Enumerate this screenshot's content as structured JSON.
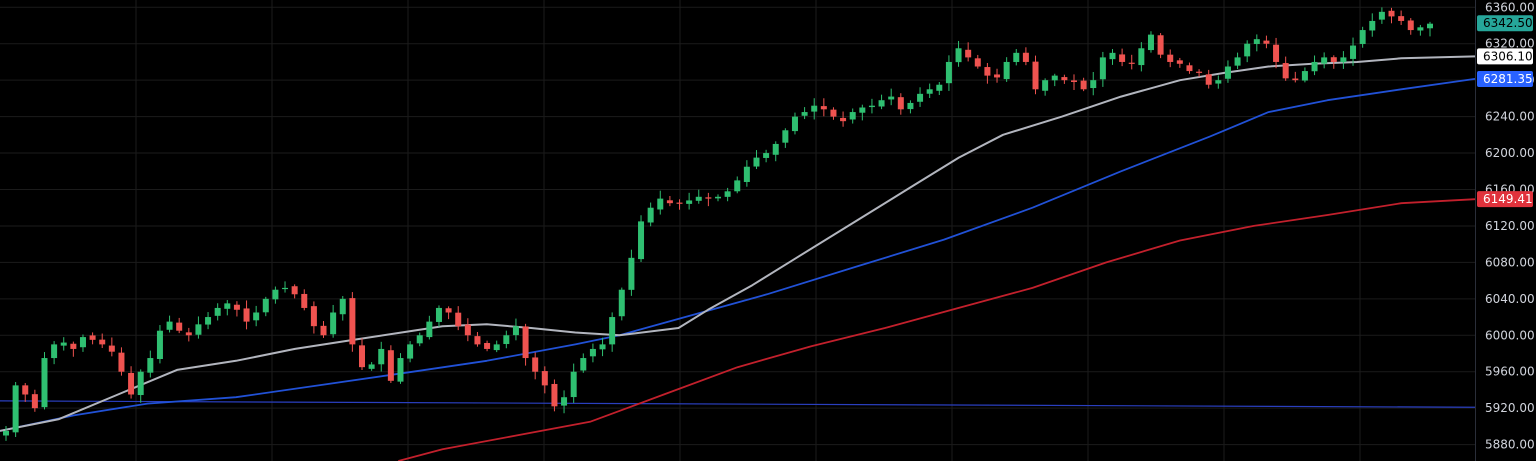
{
  "chart_data": {
    "type": "candlestick",
    "y_axis_side": "right",
    "ylim": [
      5862,
      6368
    ],
    "grid": true,
    "background": "#000000",
    "colors": {
      "up": "#26a69a",
      "up_bright": "#2fbf71",
      "down": "#ef5350",
      "grid": "#1b1b1b",
      "axis_text": "#d1d4dc",
      "ma_short": "#b2b5be",
      "ma_mid": "#2151d6",
      "ma_long": "#c2202c",
      "support_line": "#2a3fbf"
    },
    "y_ticks": [
      "6360.00",
      "6320.00",
      "6280.00",
      "6240.00",
      "6200.00",
      "6160.00",
      "6120.00",
      "6080.00",
      "6040.00",
      "6000.00",
      "5960.00",
      "5920.00",
      "5880.00"
    ],
    "y_tick_values": [
      6360,
      6320,
      6280,
      6240,
      6200,
      6160,
      6120,
      6080,
      6040,
      6000,
      5960,
      5920,
      5880
    ],
    "price_badges": [
      {
        "label": "6342.50",
        "value": 6342.5,
        "bg": "#26a69a",
        "fg": "#000000"
      },
      {
        "label": "6306.10",
        "value": 6306.1,
        "bg": "#ffffff",
        "fg": "#000000"
      },
      {
        "label": "6281.35",
        "value": 6281.35,
        "bg": "#2962ff",
        "fg": "#ffffff"
      },
      {
        "label": "6149.41",
        "value": 6149.41,
        "bg": "#e0323c",
        "fg": "#ffffff"
      }
    ],
    "close_path": [
      5895,
      5945,
      5935,
      5920,
      5975,
      5990,
      5992,
      5985,
      5998,
      5995,
      5990,
      5982,
      5960,
      5935,
      5960,
      5975,
      6005,
      6015,
      6005,
      6000,
      6012,
      6020,
      6030,
      6035,
      6028,
      6015,
      6025,
      6040,
      6050,
      6052,
      6045,
      6030,
      6010,
      6000,
      6025,
      6040,
      5990,
      5965,
      5968,
      5985,
      5950,
      5975,
      5990,
      6000,
      6015,
      6030,
      6025,
      6010,
      6000,
      5990,
      5985,
      5990,
      6000,
      6010,
      5975,
      5960,
      5945,
      5922,
      5932,
      5960,
      5975,
      5985,
      5990,
      6020,
      6050,
      6085,
      6125,
      6140,
      6150,
      6145,
      6145,
      6148,
      6152,
      6150,
      6152,
      6158,
      6170,
      6185,
      6195,
      6200,
      6210,
      6225,
      6240,
      6245,
      6252,
      6248,
      6240,
      6235,
      6245,
      6250,
      6252,
      6258,
      6262,
      6248,
      6255,
      6265,
      6270,
      6275,
      6300,
      6315,
      6305,
      6295,
      6285,
      6283,
      6300,
      6310,
      6300,
      6270,
      6280,
      6285,
      6280,
      6278,
      6270,
      6280,
      6305,
      6310,
      6300,
      6298,
      6315,
      6330,
      6308,
      6300,
      6298,
      6290,
      6288,
      6275,
      6280,
      6295,
      6305,
      6320,
      6325,
      6320,
      6300,
      6282,
      6280,
      6290,
      6300,
      6305,
      6300,
      6305,
      6318,
      6335,
      6345,
      6355,
      6350,
      6345,
      6335,
      6338,
      6342
    ],
    "ma_short_points": [
      [
        0,
        5895
      ],
      [
        0.04,
        5908
      ],
      [
        0.08,
        5935
      ],
      [
        0.12,
        5962
      ],
      [
        0.16,
        5972
      ],
      [
        0.2,
        5985
      ],
      [
        0.24,
        5995
      ],
      [
        0.28,
        6005
      ],
      [
        0.3,
        6010
      ],
      [
        0.33,
        6012
      ],
      [
        0.36,
        6008
      ],
      [
        0.39,
        6003
      ],
      [
        0.42,
        6000
      ],
      [
        0.46,
        6008
      ],
      [
        0.48,
        6028
      ],
      [
        0.51,
        6055
      ],
      [
        0.54,
        6085
      ],
      [
        0.58,
        6125
      ],
      [
        0.62,
        6165
      ],
      [
        0.65,
        6195
      ],
      [
        0.68,
        6220
      ],
      [
        0.72,
        6240
      ],
      [
        0.76,
        6262
      ],
      [
        0.8,
        6280
      ],
      [
        0.83,
        6288
      ],
      [
        0.86,
        6295
      ],
      [
        0.89,
        6298
      ],
      [
        0.92,
        6300
      ],
      [
        0.95,
        6304
      ],
      [
        1,
        6306.1
      ]
    ],
    "ma_mid_points": [
      [
        0,
        5895
      ],
      [
        0.05,
        5912
      ],
      [
        0.1,
        5925
      ],
      [
        0.16,
        5932
      ],
      [
        0.22,
        5946
      ],
      [
        0.28,
        5960
      ],
      [
        0.33,
        5972
      ],
      [
        0.39,
        5990
      ],
      [
        0.42,
        6000
      ],
      [
        0.46,
        6018
      ],
      [
        0.52,
        6045
      ],
      [
        0.58,
        6075
      ],
      [
        0.64,
        6105
      ],
      [
        0.7,
        6140
      ],
      [
        0.76,
        6180
      ],
      [
        0.82,
        6218
      ],
      [
        0.86,
        6245
      ],
      [
        0.9,
        6258
      ],
      [
        0.95,
        6270
      ],
      [
        1,
        6281.35
      ]
    ],
    "ma_long_points": [
      [
        0.27,
        5862
      ],
      [
        0.3,
        5875
      ],
      [
        0.35,
        5890
      ],
      [
        0.4,
        5905
      ],
      [
        0.45,
        5935
      ],
      [
        0.5,
        5965
      ],
      [
        0.55,
        5988
      ],
      [
        0.6,
        6008
      ],
      [
        0.65,
        6030
      ],
      [
        0.7,
        6052
      ],
      [
        0.75,
        6080
      ],
      [
        0.8,
        6104
      ],
      [
        0.85,
        6120
      ],
      [
        0.9,
        6132
      ],
      [
        0.95,
        6145
      ],
      [
        1,
        6149.41
      ]
    ],
    "support_line": [
      [
        0,
        5928
      ],
      [
        1,
        5921
      ]
    ]
  }
}
